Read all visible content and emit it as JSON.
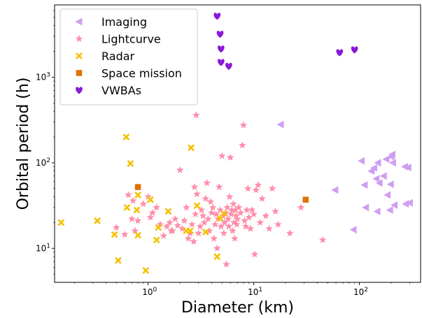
{
  "chart_data": {
    "type": "scatter",
    "xlabel": "Diameter (km)",
    "ylabel": "Orbital period (h)",
    "xscale": "log",
    "yscale": "log",
    "xlim": [
      0.13,
      380
    ],
    "ylim": [
      4,
      7000
    ],
    "xticks": [
      {
        "value": 1,
        "label": "10",
        "sup": "0"
      },
      {
        "value": 10,
        "label": "10",
        "sup": "1"
      },
      {
        "value": 100,
        "label": "10",
        "sup": "2"
      }
    ],
    "yticks": [
      {
        "value": 10,
        "label": "10",
        "sup": "1"
      },
      {
        "value": 100,
        "label": "10",
        "sup": "2"
      },
      {
        "value": 1000,
        "label": "10",
        "sup": "3"
      }
    ],
    "grid": false,
    "legend_position": "top-left",
    "series": [
      {
        "name": "Imaging",
        "marker": "triangle-left",
        "color": "#cf9ef2",
        "points": [
          [
            18,
            280
          ],
          [
            59,
            48
          ],
          [
            88,
            16.5
          ],
          [
            105,
            105
          ],
          [
            115,
            30
          ],
          [
            112,
            55
          ],
          [
            130,
            80
          ],
          [
            138,
            87
          ],
          [
            145,
            65
          ],
          [
            150,
            100
          ],
          [
            155,
            58
          ],
          [
            148,
            27
          ],
          [
            170,
            70
          ],
          [
            180,
            110
          ],
          [
            185,
            42
          ],
          [
            200,
            118
          ],
          [
            205,
            125
          ],
          [
            208,
            100
          ],
          [
            198,
            56
          ],
          [
            195,
            28
          ],
          [
            215,
            32
          ],
          [
            270,
            90
          ],
          [
            275,
            33
          ],
          [
            290,
            88
          ],
          [
            300,
            34
          ]
        ]
      },
      {
        "name": "Lightcurve",
        "marker": "star",
        "color": "#ff8fab",
        "points": [
          [
            0.5,
            17.5
          ],
          [
            0.6,
            14.5
          ],
          [
            0.65,
            42
          ],
          [
            0.7,
            22
          ],
          [
            0.72,
            36
          ],
          [
            0.75,
            16
          ],
          [
            0.8,
            21
          ],
          [
            0.9,
            33
          ],
          [
            1.0,
            40
          ],
          [
            1.05,
            23
          ],
          [
            1.1,
            26
          ],
          [
            1.2,
            30
          ],
          [
            1.3,
            19
          ],
          [
            1.4,
            14
          ],
          [
            1.5,
            18
          ],
          [
            1.6,
            20
          ],
          [
            1.65,
            16
          ],
          [
            1.7,
            16
          ],
          [
            1.8,
            22
          ],
          [
            1.9,
            18.5
          ],
          [
            2.0,
            82
          ],
          [
            2.1,
            17
          ],
          [
            2.2,
            21
          ],
          [
            2.3,
            30
          ],
          [
            2.4,
            13
          ],
          [
            2.5,
            15
          ],
          [
            2.6,
            19
          ],
          [
            2.7,
            12
          ],
          [
            2.75,
            52
          ],
          [
            2.8,
            25
          ],
          [
            2.85,
            360
          ],
          [
            2.9,
            43
          ],
          [
            3.0,
            15
          ],
          [
            3.1,
            18
          ],
          [
            3.2,
            28
          ],
          [
            3.3,
            24
          ],
          [
            3.4,
            20
          ],
          [
            3.5,
            38
          ],
          [
            3.6,
            58
          ],
          [
            3.7,
            22
          ],
          [
            3.8,
            16
          ],
          [
            3.9,
            35
          ],
          [
            4.0,
            26
          ],
          [
            4.1,
            30
          ],
          [
            4.2,
            13
          ],
          [
            4.3,
            19
          ],
          [
            4.4,
            25
          ],
          [
            4.5,
            10
          ],
          [
            4.6,
            22
          ],
          [
            4.7,
            52
          ],
          [
            4.8,
            28
          ],
          [
            4.9,
            18
          ],
          [
            5.0,
            120
          ],
          [
            5.1,
            24
          ],
          [
            5.2,
            15
          ],
          [
            5.3,
            20
          ],
          [
            5.4,
            26
          ],
          [
            5.5,
            6.5
          ],
          [
            5.6,
            30
          ],
          [
            5.7,
            22
          ],
          [
            5.8,
            18
          ],
          [
            5.9,
            40
          ],
          [
            6.0,
            115
          ],
          [
            6.1,
            25
          ],
          [
            6.2,
            28
          ],
          [
            6.3,
            16
          ],
          [
            6.4,
            33
          ],
          [
            6.5,
            20
          ],
          [
            6.6,
            13
          ],
          [
            6.7,
            28
          ],
          [
            6.8,
            24
          ],
          [
            6.9,
            19
          ],
          [
            7.0,
            22
          ],
          [
            7.2,
            30
          ],
          [
            7.5,
            26
          ],
          [
            7.8,
            160
          ],
          [
            8.0,
            275
          ],
          [
            8.2,
            21
          ],
          [
            8.4,
            18
          ],
          [
            8.6,
            28
          ],
          [
            8.8,
            50
          ],
          [
            9.0,
            23
          ],
          [
            9.3,
            17
          ],
          [
            9.6,
            28
          ],
          [
            10.0,
            25
          ],
          [
            10.2,
            8.5
          ],
          [
            10.5,
            48
          ],
          [
            11,
            55
          ],
          [
            11.5,
            20
          ],
          [
            12,
            38
          ],
          [
            13,
            24
          ],
          [
            14,
            17
          ],
          [
            15,
            50
          ],
          [
            16,
            27
          ],
          [
            17,
            19
          ],
          [
            22,
            15
          ],
          [
            28,
            30
          ],
          [
            45,
            12.5
          ]
        ]
      },
      {
        "name": "Radar",
        "marker": "x",
        "color": "#f5c000",
        "points": [
          [
            0.15,
            20
          ],
          [
            0.33,
            21
          ],
          [
            0.48,
            14.5
          ],
          [
            0.52,
            7.2
          ],
          [
            0.62,
            200
          ],
          [
            0.63,
            30
          ],
          [
            0.68,
            98
          ],
          [
            0.78,
            28
          ],
          [
            0.8,
            14.2
          ],
          [
            0.8,
            42
          ],
          [
            0.95,
            5.5
          ],
          [
            1.05,
            37
          ],
          [
            1.2,
            12.5
          ],
          [
            1.25,
            17.5
          ],
          [
            1.55,
            27
          ],
          [
            2.3,
            16
          ],
          [
            2.5,
            16
          ],
          [
            2.55,
            150
          ],
          [
            2.9,
            31.5
          ],
          [
            3.5,
            15.5
          ],
          [
            4.5,
            8
          ],
          [
            4.8,
            22.5
          ],
          [
            5.2,
            25.5
          ]
        ]
      },
      {
        "name": "Space mission",
        "marker": "square",
        "color": "#e07000",
        "points": [
          [
            0.8,
            52
          ],
          [
            31,
            37
          ]
        ]
      },
      {
        "name": "VWBAs",
        "marker": "heart",
        "color": "#8a19d6",
        "points": [
          [
            4.5,
            5200
          ],
          [
            4.8,
            3200
          ],
          [
            4.9,
            2150
          ],
          [
            4.9,
            1500
          ],
          [
            5.8,
            1350
          ],
          [
            65,
            1950
          ],
          [
            90,
            2100
          ]
        ]
      }
    ]
  }
}
